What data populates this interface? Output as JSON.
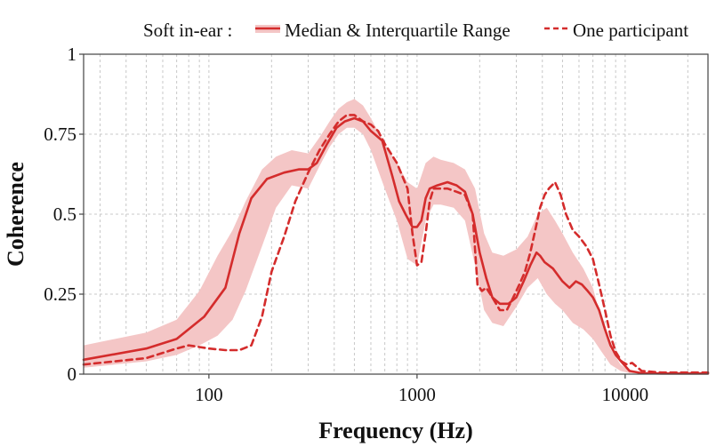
{
  "chart_data": {
    "type": "line",
    "title": "",
    "xlabel": "Frequency (Hz)",
    "ylabel": "Coherence",
    "x_scale": "log",
    "xlim": [
      25,
      25000
    ],
    "ylim": [
      0,
      1
    ],
    "grid": true,
    "x_ticks": [
      {
        "value": 100,
        "label": "100"
      },
      {
        "value": 1000,
        "label": "1000"
      },
      {
        "value": 10000,
        "label": "10000"
      }
    ],
    "y_ticks": [
      {
        "value": 0,
        "label": "0"
      },
      {
        "value": 0.25,
        "label": "0.25"
      },
      {
        "value": 0.5,
        "label": "0.5"
      },
      {
        "value": 0.75,
        "label": "0.75"
      },
      {
        "value": 1,
        "label": "1"
      }
    ],
    "legend": {
      "placement": "top",
      "group_label": "Soft in-ear :",
      "entries": [
        "Median & Interquartile Range",
        "One participant"
      ]
    },
    "colors": {
      "line": "#d42c2c",
      "band": "#f4c6c6"
    },
    "band": {
      "name": "Interquartile Range",
      "x": [
        25,
        50,
        70,
        90,
        110,
        130,
        150,
        180,
        210,
        250,
        300,
        340,
        380,
        420,
        460,
        500,
        550,
        600,
        700,
        800,
        900,
        1000,
        1100,
        1200,
        1300,
        1500,
        1700,
        1900,
        2100,
        2300,
        2600,
        3000,
        3400,
        3800,
        4200,
        4600,
        5000,
        5600,
        6300,
        7000,
        7700,
        8500,
        9500,
        10500,
        12000,
        15000,
        25000
      ],
      "upper": [
        0.09,
        0.13,
        0.17,
        0.26,
        0.37,
        0.45,
        0.54,
        0.64,
        0.68,
        0.7,
        0.69,
        0.74,
        0.79,
        0.83,
        0.85,
        0.86,
        0.84,
        0.8,
        0.72,
        0.66,
        0.6,
        0.58,
        0.66,
        0.68,
        0.67,
        0.66,
        0.64,
        0.58,
        0.44,
        0.38,
        0.37,
        0.39,
        0.43,
        0.5,
        0.52,
        0.48,
        0.44,
        0.38,
        0.33,
        0.27,
        0.17,
        0.08,
        0.03,
        0.01,
        0.006,
        0.005,
        0.005
      ],
      "lower": [
        0.02,
        0.04,
        0.06,
        0.09,
        0.12,
        0.17,
        0.26,
        0.4,
        0.52,
        0.59,
        0.58,
        0.65,
        0.71,
        0.75,
        0.77,
        0.77,
        0.75,
        0.7,
        0.58,
        0.48,
        0.36,
        0.34,
        0.48,
        0.53,
        0.53,
        0.52,
        0.48,
        0.34,
        0.2,
        0.16,
        0.15,
        0.21,
        0.27,
        0.3,
        0.25,
        0.22,
        0.2,
        0.16,
        0.14,
        0.11,
        0.07,
        0.03,
        0.01,
        0.003,
        0.002,
        0.001,
        0.001
      ]
    },
    "series": [
      {
        "name": "Median",
        "style": "solid",
        "x": [
          25,
          50,
          70,
          95,
          120,
          140,
          160,
          190,
          230,
          270,
          300,
          330,
          370,
          410,
          450,
          500,
          550,
          600,
          680,
          760,
          820,
          880,
          950,
          1000,
          1050,
          1100,
          1150,
          1250,
          1400,
          1550,
          1700,
          1850,
          2000,
          2150,
          2300,
          2500,
          2750,
          3000,
          3250,
          3500,
          3750,
          3900,
          4100,
          4500,
          5000,
          5400,
          5800,
          6200,
          6600,
          7000,
          7500,
          8000,
          8500,
          9000,
          9700,
          10500,
          12000,
          15000,
          25000
        ],
        "values": [
          0.045,
          0.08,
          0.11,
          0.18,
          0.27,
          0.44,
          0.55,
          0.61,
          0.63,
          0.64,
          0.64,
          0.66,
          0.72,
          0.77,
          0.79,
          0.8,
          0.79,
          0.76,
          0.73,
          0.62,
          0.54,
          0.5,
          0.46,
          0.46,
          0.48,
          0.55,
          0.58,
          0.59,
          0.6,
          0.59,
          0.57,
          0.5,
          0.38,
          0.3,
          0.24,
          0.22,
          0.22,
          0.24,
          0.29,
          0.34,
          0.38,
          0.37,
          0.35,
          0.33,
          0.29,
          0.27,
          0.29,
          0.28,
          0.26,
          0.24,
          0.2,
          0.14,
          0.09,
          0.06,
          0.035,
          0.01,
          0.003,
          0.002,
          0.002
        ]
      },
      {
        "name": "One participant",
        "style": "dashed",
        "x": [
          25,
          50,
          70,
          80,
          100,
          120,
          140,
          160,
          180,
          200,
          230,
          260,
          300,
          340,
          380,
          420,
          460,
          500,
          550,
          600,
          650,
          700,
          800,
          900,
          950,
          1000,
          1050,
          1100,
          1150,
          1200,
          1300,
          1400,
          1550,
          1700,
          1850,
          1950,
          2050,
          2150,
          2300,
          2500,
          2700,
          2900,
          3100,
          3300,
          3500,
          3700,
          3900,
          4100,
          4300,
          4600,
          4900,
          5200,
          5600,
          6000,
          6500,
          7000,
          7500,
          8000,
          8500,
          9000,
          9600,
          10200,
          10800,
          12000,
          15000,
          25000
        ],
        "values": [
          0.03,
          0.05,
          0.08,
          0.09,
          0.08,
          0.075,
          0.075,
          0.09,
          0.18,
          0.32,
          0.43,
          0.54,
          0.63,
          0.7,
          0.75,
          0.79,
          0.81,
          0.81,
          0.79,
          0.78,
          0.76,
          0.72,
          0.66,
          0.58,
          0.44,
          0.34,
          0.35,
          0.44,
          0.54,
          0.58,
          0.58,
          0.58,
          0.57,
          0.56,
          0.5,
          0.28,
          0.26,
          0.27,
          0.24,
          0.2,
          0.2,
          0.24,
          0.28,
          0.32,
          0.38,
          0.45,
          0.52,
          0.56,
          0.58,
          0.6,
          0.56,
          0.5,
          0.45,
          0.43,
          0.4,
          0.36,
          0.28,
          0.2,
          0.12,
          0.07,
          0.04,
          0.03,
          0.035,
          0.01,
          0.005,
          0.005
        ]
      }
    ]
  }
}
